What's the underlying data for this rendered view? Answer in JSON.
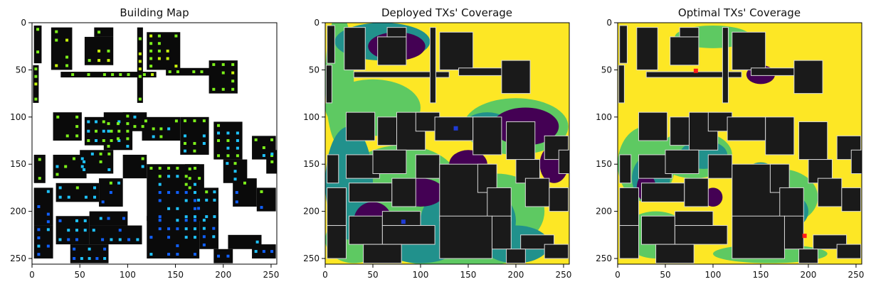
{
  "chart_data": [
    {
      "type": "heatmap",
      "title": "Building Map",
      "x_ticks": [
        "0",
        "50",
        "100",
        "150",
        "200",
        "250"
      ],
      "y_ticks": [
        "0",
        "50",
        "100",
        "150",
        "200",
        "250"
      ],
      "x_tick_values": [
        0,
        50,
        100,
        150,
        200,
        250
      ],
      "y_tick_values": [
        0,
        50,
        100,
        150,
        200,
        250
      ],
      "xlim": [
        0,
        256
      ],
      "ylim": [
        256,
        0
      ],
      "colors": {
        "background": "#ffffff",
        "building": "#0a0a0a",
        "tx_green": "#7cf01a",
        "tx_lime": "#c8f50a",
        "tx_cyan": "#1ec3ff",
        "tx_blue": "#1060ff"
      }
    },
    {
      "type": "heatmap",
      "title": "Deployed TXs' Coverage",
      "x_ticks": [
        "0",
        "50",
        "100",
        "150",
        "200",
        "250"
      ],
      "y_ticks": [
        "0",
        "50",
        "100",
        "150",
        "200",
        "250"
      ],
      "x_tick_values": [
        0,
        50,
        100,
        150,
        200,
        250
      ],
      "y_tick_values": [
        0,
        50,
        100,
        150,
        200,
        250
      ],
      "xlim": [
        0,
        256
      ],
      "ylim": [
        256,
        0
      ],
      "colors": {
        "high": "#fde725",
        "mid_high": "#5ec962",
        "mid": "#21918c",
        "low": "#440154",
        "building": "#1a1a1a",
        "tx_marker": "#1f3bd6"
      },
      "tx_markers": [
        {
          "x": 137,
          "y": 112
        },
        {
          "x": 82,
          "y": 211
        }
      ]
    },
    {
      "type": "heatmap",
      "title": "Optimal TXs' Coverage",
      "x_ticks": [
        "0",
        "50",
        "100",
        "150",
        "200",
        "250"
      ],
      "y_ticks": [
        "0",
        "50",
        "100",
        "150",
        "200",
        "250"
      ],
      "x_tick_values": [
        0,
        50,
        100,
        150,
        200,
        250
      ],
      "y_tick_values": [
        0,
        50,
        100,
        150,
        200,
        250
      ],
      "xlim": [
        0,
        256
      ],
      "ylim": [
        256,
        0
      ],
      "colors": {
        "high": "#fde725",
        "mid_high": "#5ec962",
        "mid": "#21918c",
        "low": "#440154",
        "building": "#1a1a1a",
        "tx_marker": "#ff1a1a"
      },
      "tx_markers": [
        {
          "x": 82,
          "y": 51
        },
        {
          "x": 196,
          "y": 226
        }
      ]
    }
  ]
}
